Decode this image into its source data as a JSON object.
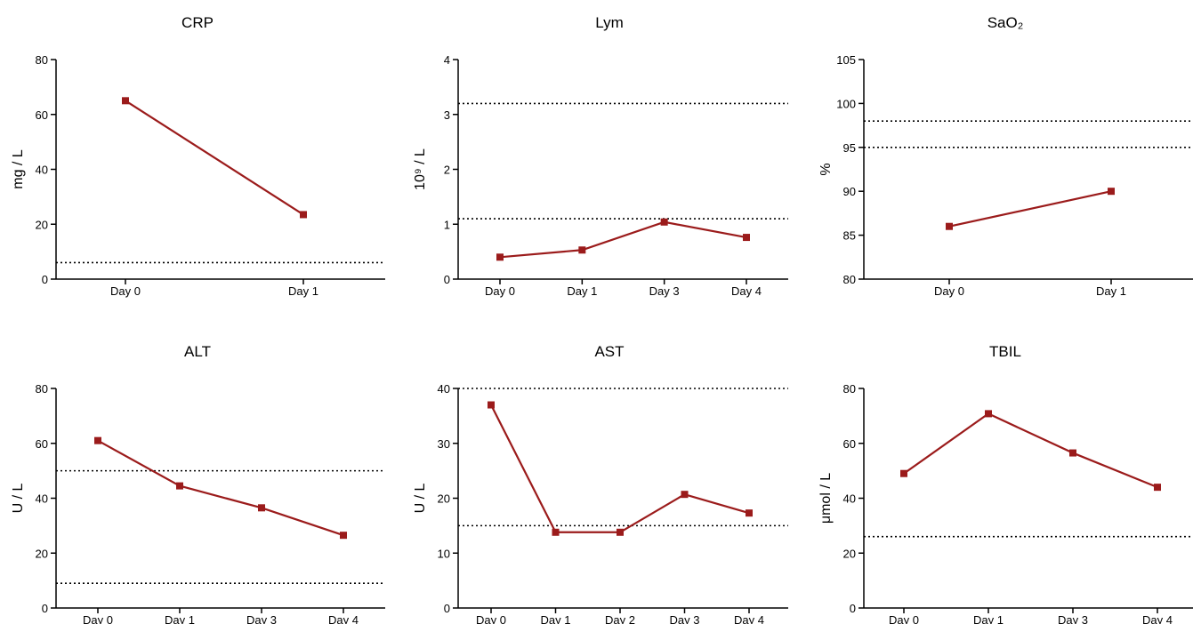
{
  "chart_data": [
    {
      "type": "line",
      "title": "CRP",
      "ylabel": "mg / L",
      "categories": [
        "Day 0",
        "Day 1"
      ],
      "values": [
        65,
        23.5
      ],
      "ylim": [
        0,
        80
      ],
      "yticks": [
        0,
        20,
        40,
        60,
        80
      ],
      "reference_lines": [
        6
      ],
      "color": "#9b1b1b"
    },
    {
      "type": "line",
      "title": "Lym",
      "ylabel": "10⁹ / L",
      "categories": [
        "Day 0",
        "Day 1",
        "Day 3",
        "Day 4"
      ],
      "values": [
        0.4,
        0.53,
        1.04,
        0.76
      ],
      "ylim": [
        0,
        4
      ],
      "yticks": [
        0,
        1,
        2,
        3,
        4
      ],
      "reference_lines": [
        1.1,
        3.2
      ],
      "color": "#9b1b1b"
    },
    {
      "type": "line",
      "title": "SaO₂",
      "ylabel": "%",
      "categories": [
        "Day 0",
        "Day 1"
      ],
      "values": [
        86,
        90
      ],
      "ylim": [
        80,
        105
      ],
      "yticks": [
        80,
        85,
        90,
        95,
        100,
        105
      ],
      "reference_lines": [
        95,
        98
      ],
      "color": "#9b1b1b"
    },
    {
      "type": "line",
      "title": "ALT",
      "ylabel": "U / L",
      "categories": [
        "Day 0",
        "Day 1",
        "Day 3",
        "Day 4"
      ],
      "values": [
        61,
        44.5,
        36.5,
        26.5
      ],
      "ylim": [
        0,
        80
      ],
      "yticks": [
        0,
        20,
        40,
        60,
        80
      ],
      "reference_lines": [
        9,
        50
      ],
      "color": "#9b1b1b"
    },
    {
      "type": "line",
      "title": "AST",
      "ylabel": "U / L",
      "categories": [
        "Day 0",
        "Day 1",
        "Day 2",
        "Day 3",
        "Day 4"
      ],
      "values": [
        37,
        13.8,
        13.8,
        20.7,
        17.3
      ],
      "ylim": [
        0,
        40
      ],
      "yticks": [
        0,
        10,
        20,
        30,
        40
      ],
      "reference_lines": [
        15,
        40
      ],
      "color": "#9b1b1b"
    },
    {
      "type": "line",
      "title": "TBIL",
      "ylabel": "μmol / L",
      "categories": [
        "Day 0",
        "Day 1",
        "Day 3",
        "Day 4"
      ],
      "values": [
        49,
        70.8,
        56.5,
        44
      ],
      "ylim": [
        0,
        80
      ],
      "yticks": [
        0,
        20,
        40,
        60,
        80
      ],
      "reference_lines": [
        26
      ],
      "color": "#9b1b1b"
    }
  ]
}
